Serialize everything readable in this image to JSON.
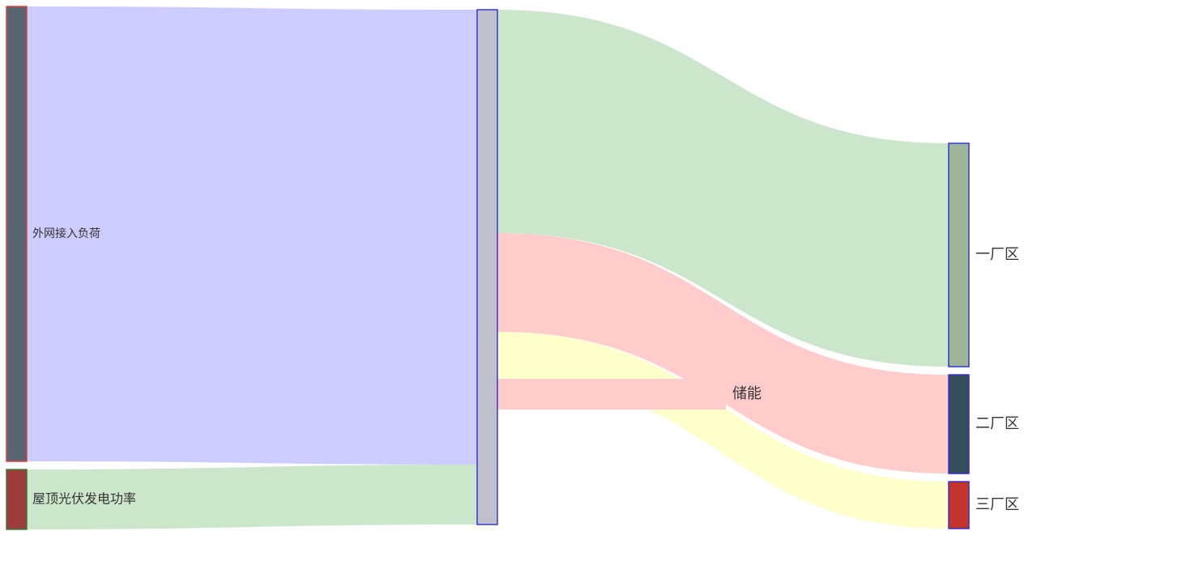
{
  "chart_data": {
    "type": "sankey",
    "nodes": [
      {
        "id": "grid",
        "name": "外网接入负荷",
        "level": 0,
        "color": "#56656f",
        "border": "#e53935"
      },
      {
        "id": "solar",
        "name": "屋顶光伏发电功率",
        "level": 0,
        "color": "#9c3c3c",
        "border": "#2e7d32"
      },
      {
        "id": "hub",
        "name": "",
        "level": 1,
        "color": "#c0c0cc",
        "border": "#2b2bd6"
      },
      {
        "id": "storage",
        "name": "储能",
        "level": 2,
        "color": "none",
        "border": "none"
      },
      {
        "id": "zone1",
        "name": "一厂区",
        "level": 3,
        "color": "#9db59b",
        "border": "#2b2bd6"
      },
      {
        "id": "zone2",
        "name": "二厂区",
        "level": 3,
        "color": "#334e5c",
        "border": "#2b2bd6"
      },
      {
        "id": "zone3",
        "name": "三厂区",
        "level": 3,
        "color": "#c4342c",
        "border": "#2b2bd6"
      }
    ],
    "links": [
      {
        "source": "grid",
        "target": "hub",
        "value": 562,
        "color": "#ccccff"
      },
      {
        "source": "solar",
        "target": "hub",
        "value": 74,
        "color": "#cce6cc"
      },
      {
        "source": "hub",
        "target": "zone1",
        "value": 276,
        "color": "#cce6cc"
      },
      {
        "source": "hub",
        "target": "zone2",
        "value": 122,
        "color": "#ffcccc"
      },
      {
        "source": "hub",
        "target": "zone3",
        "value": 58,
        "color": "#ffffcc"
      },
      {
        "source": "hub",
        "target": "storage",
        "value": 38,
        "color": "#ffcccc"
      }
    ]
  }
}
